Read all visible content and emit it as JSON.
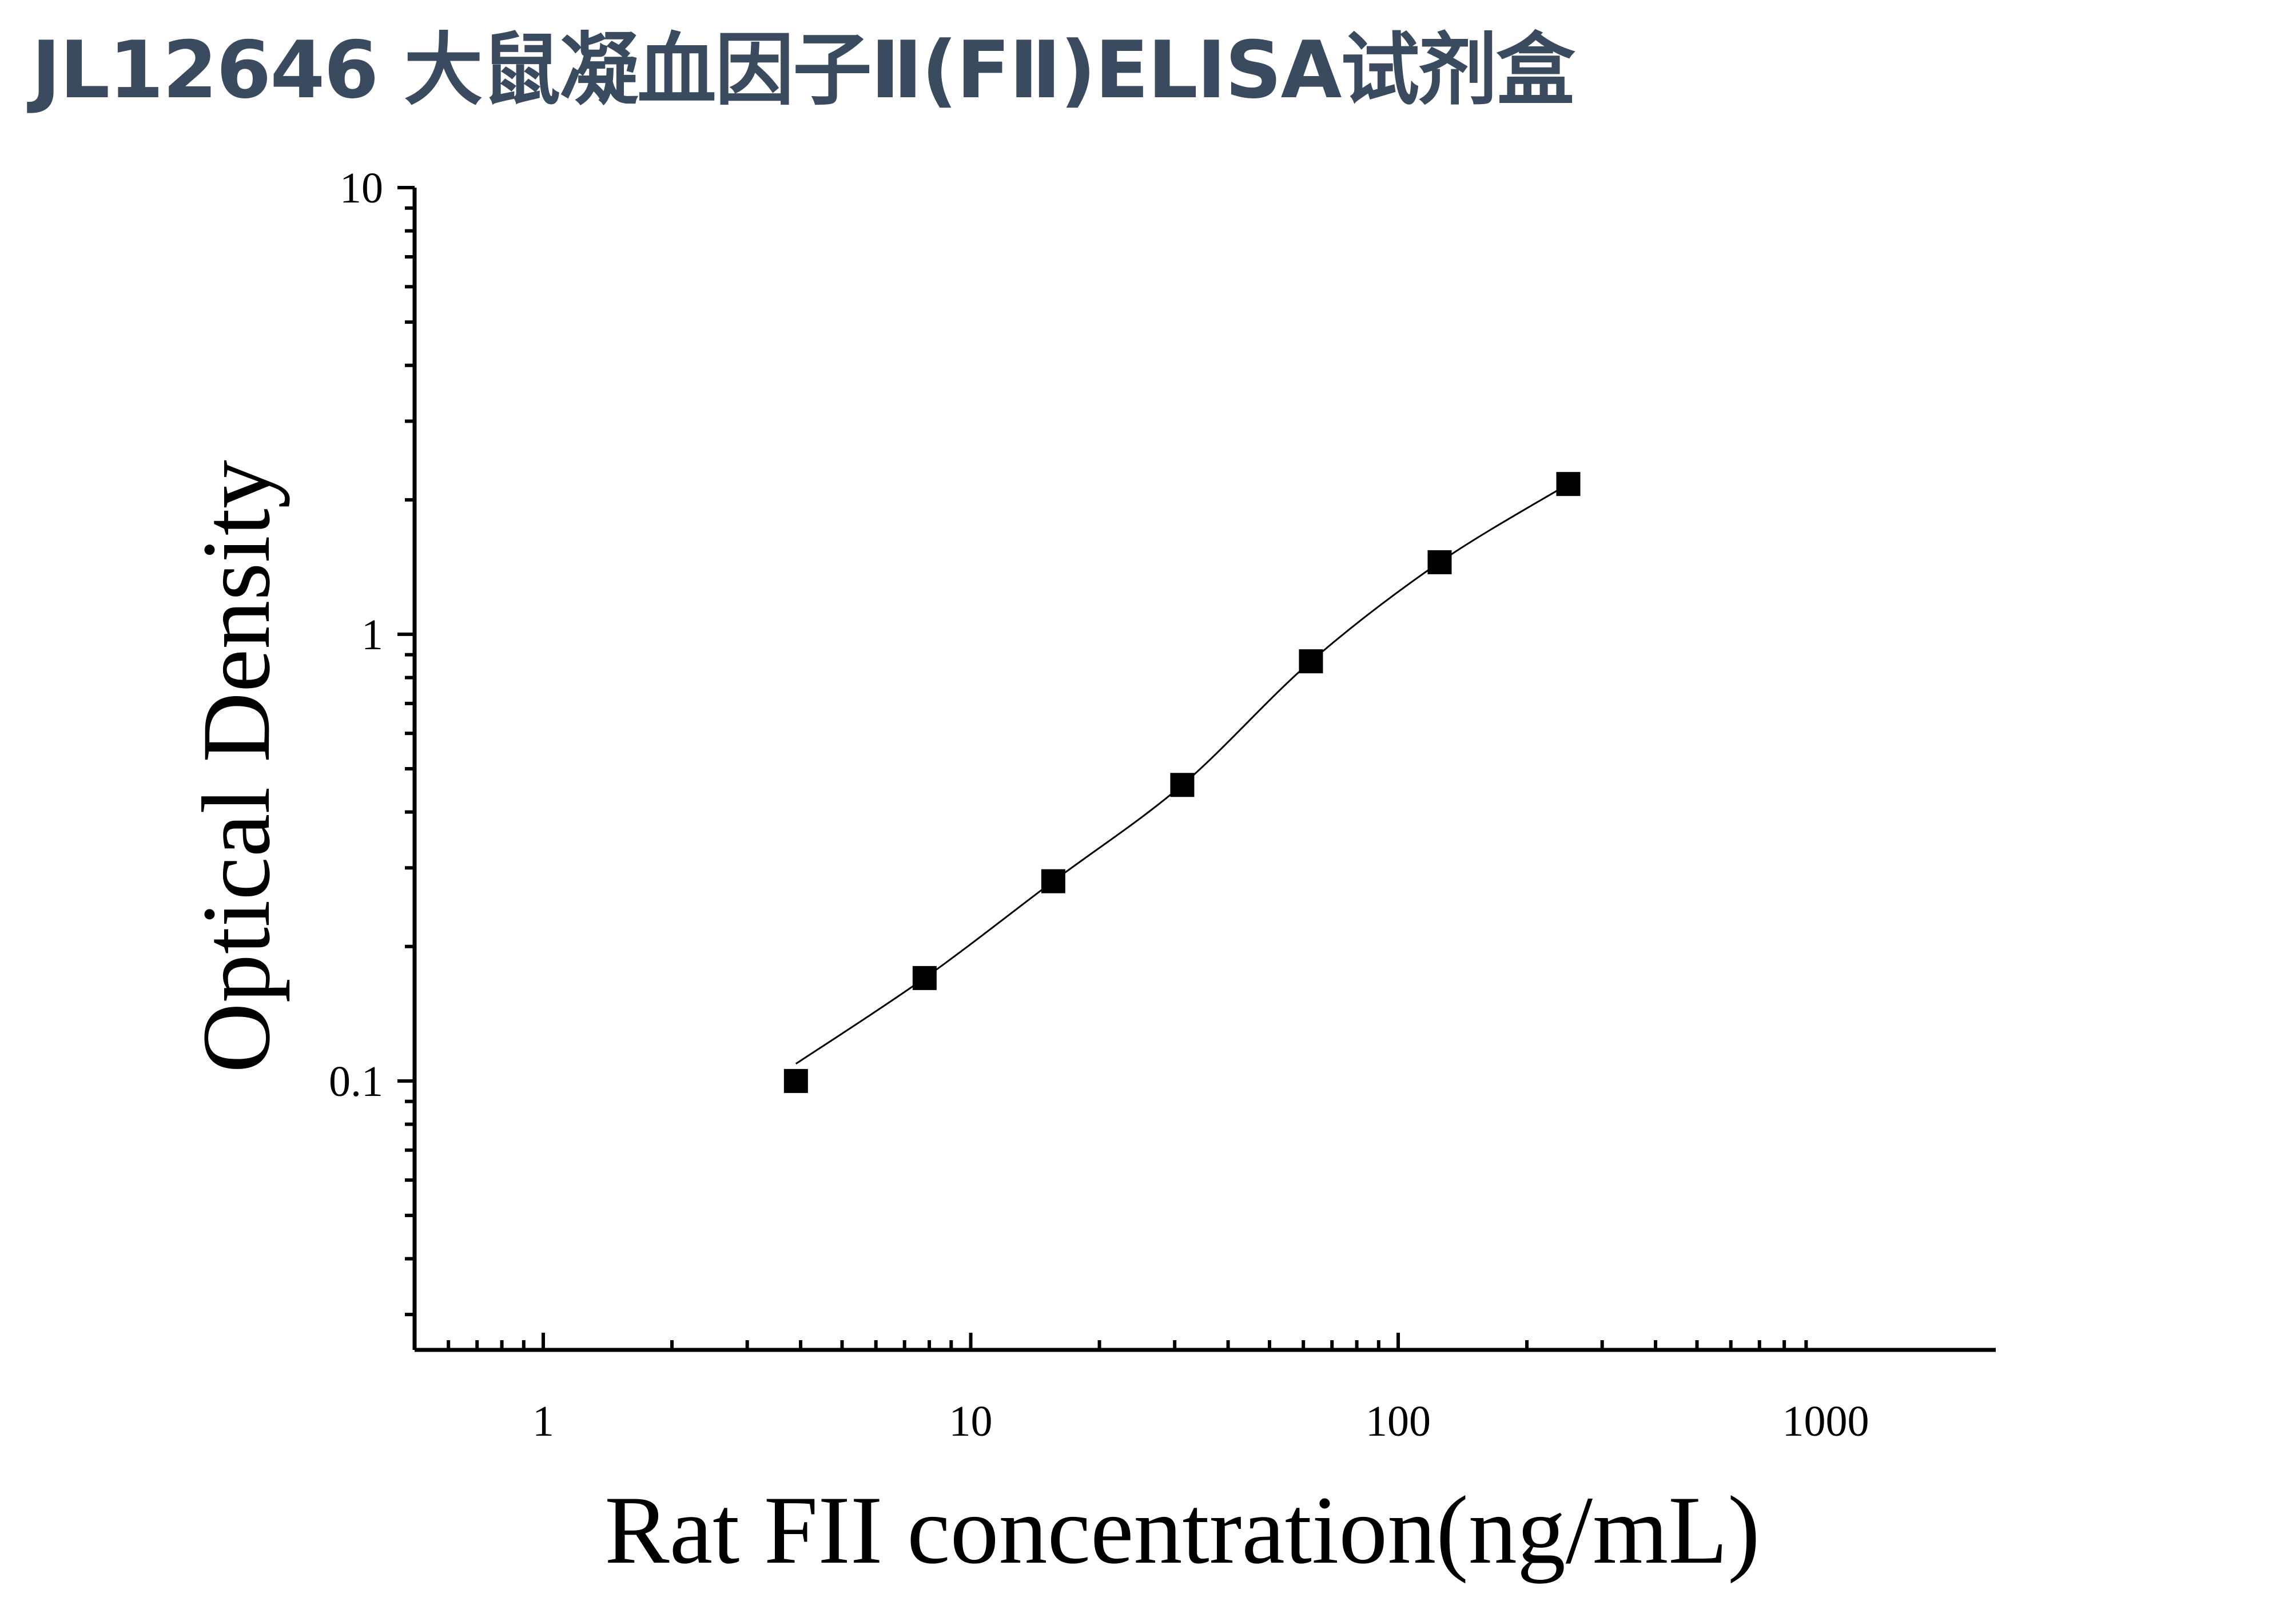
{
  "title": "JL12646 大鼠凝血因子Ⅱ(FⅡ)ELISA试剂盒",
  "colors": {
    "title": "#3a4a5f",
    "axis": "#000000",
    "marker": "#000000",
    "curve": "#000000"
  },
  "chart_data": {
    "type": "scatter",
    "title": "JL12646 大鼠凝血因子Ⅱ(FⅡ)ELISA试剂盒",
    "xlabel": "Rat FII concentration(ng/mL)",
    "ylabel": "Optical Density",
    "xscale": "log",
    "yscale": "log",
    "xlim": [
      0.5,
      2500
    ],
    "ylim": [
      0.025,
      10
    ],
    "xticks": [
      "1",
      "10",
      "100",
      "1000"
    ],
    "yticks": [
      "0.1",
      "1",
      "10"
    ],
    "xtick_values": [
      1,
      10,
      100,
      1000
    ],
    "ytick_values": [
      0.1,
      1,
      10
    ],
    "grid": false,
    "legend": "none",
    "series": [
      {
        "marker": "square",
        "x": [
          3.9,
          7.8,
          15.6,
          31.25,
          62.5,
          125,
          250
        ],
        "y": [
          0.1,
          0.17,
          0.28,
          0.46,
          0.87,
          1.45,
          2.17
        ]
      }
    ],
    "fit_curve": {
      "x_range": [
        3.9,
        250
      ]
    }
  }
}
